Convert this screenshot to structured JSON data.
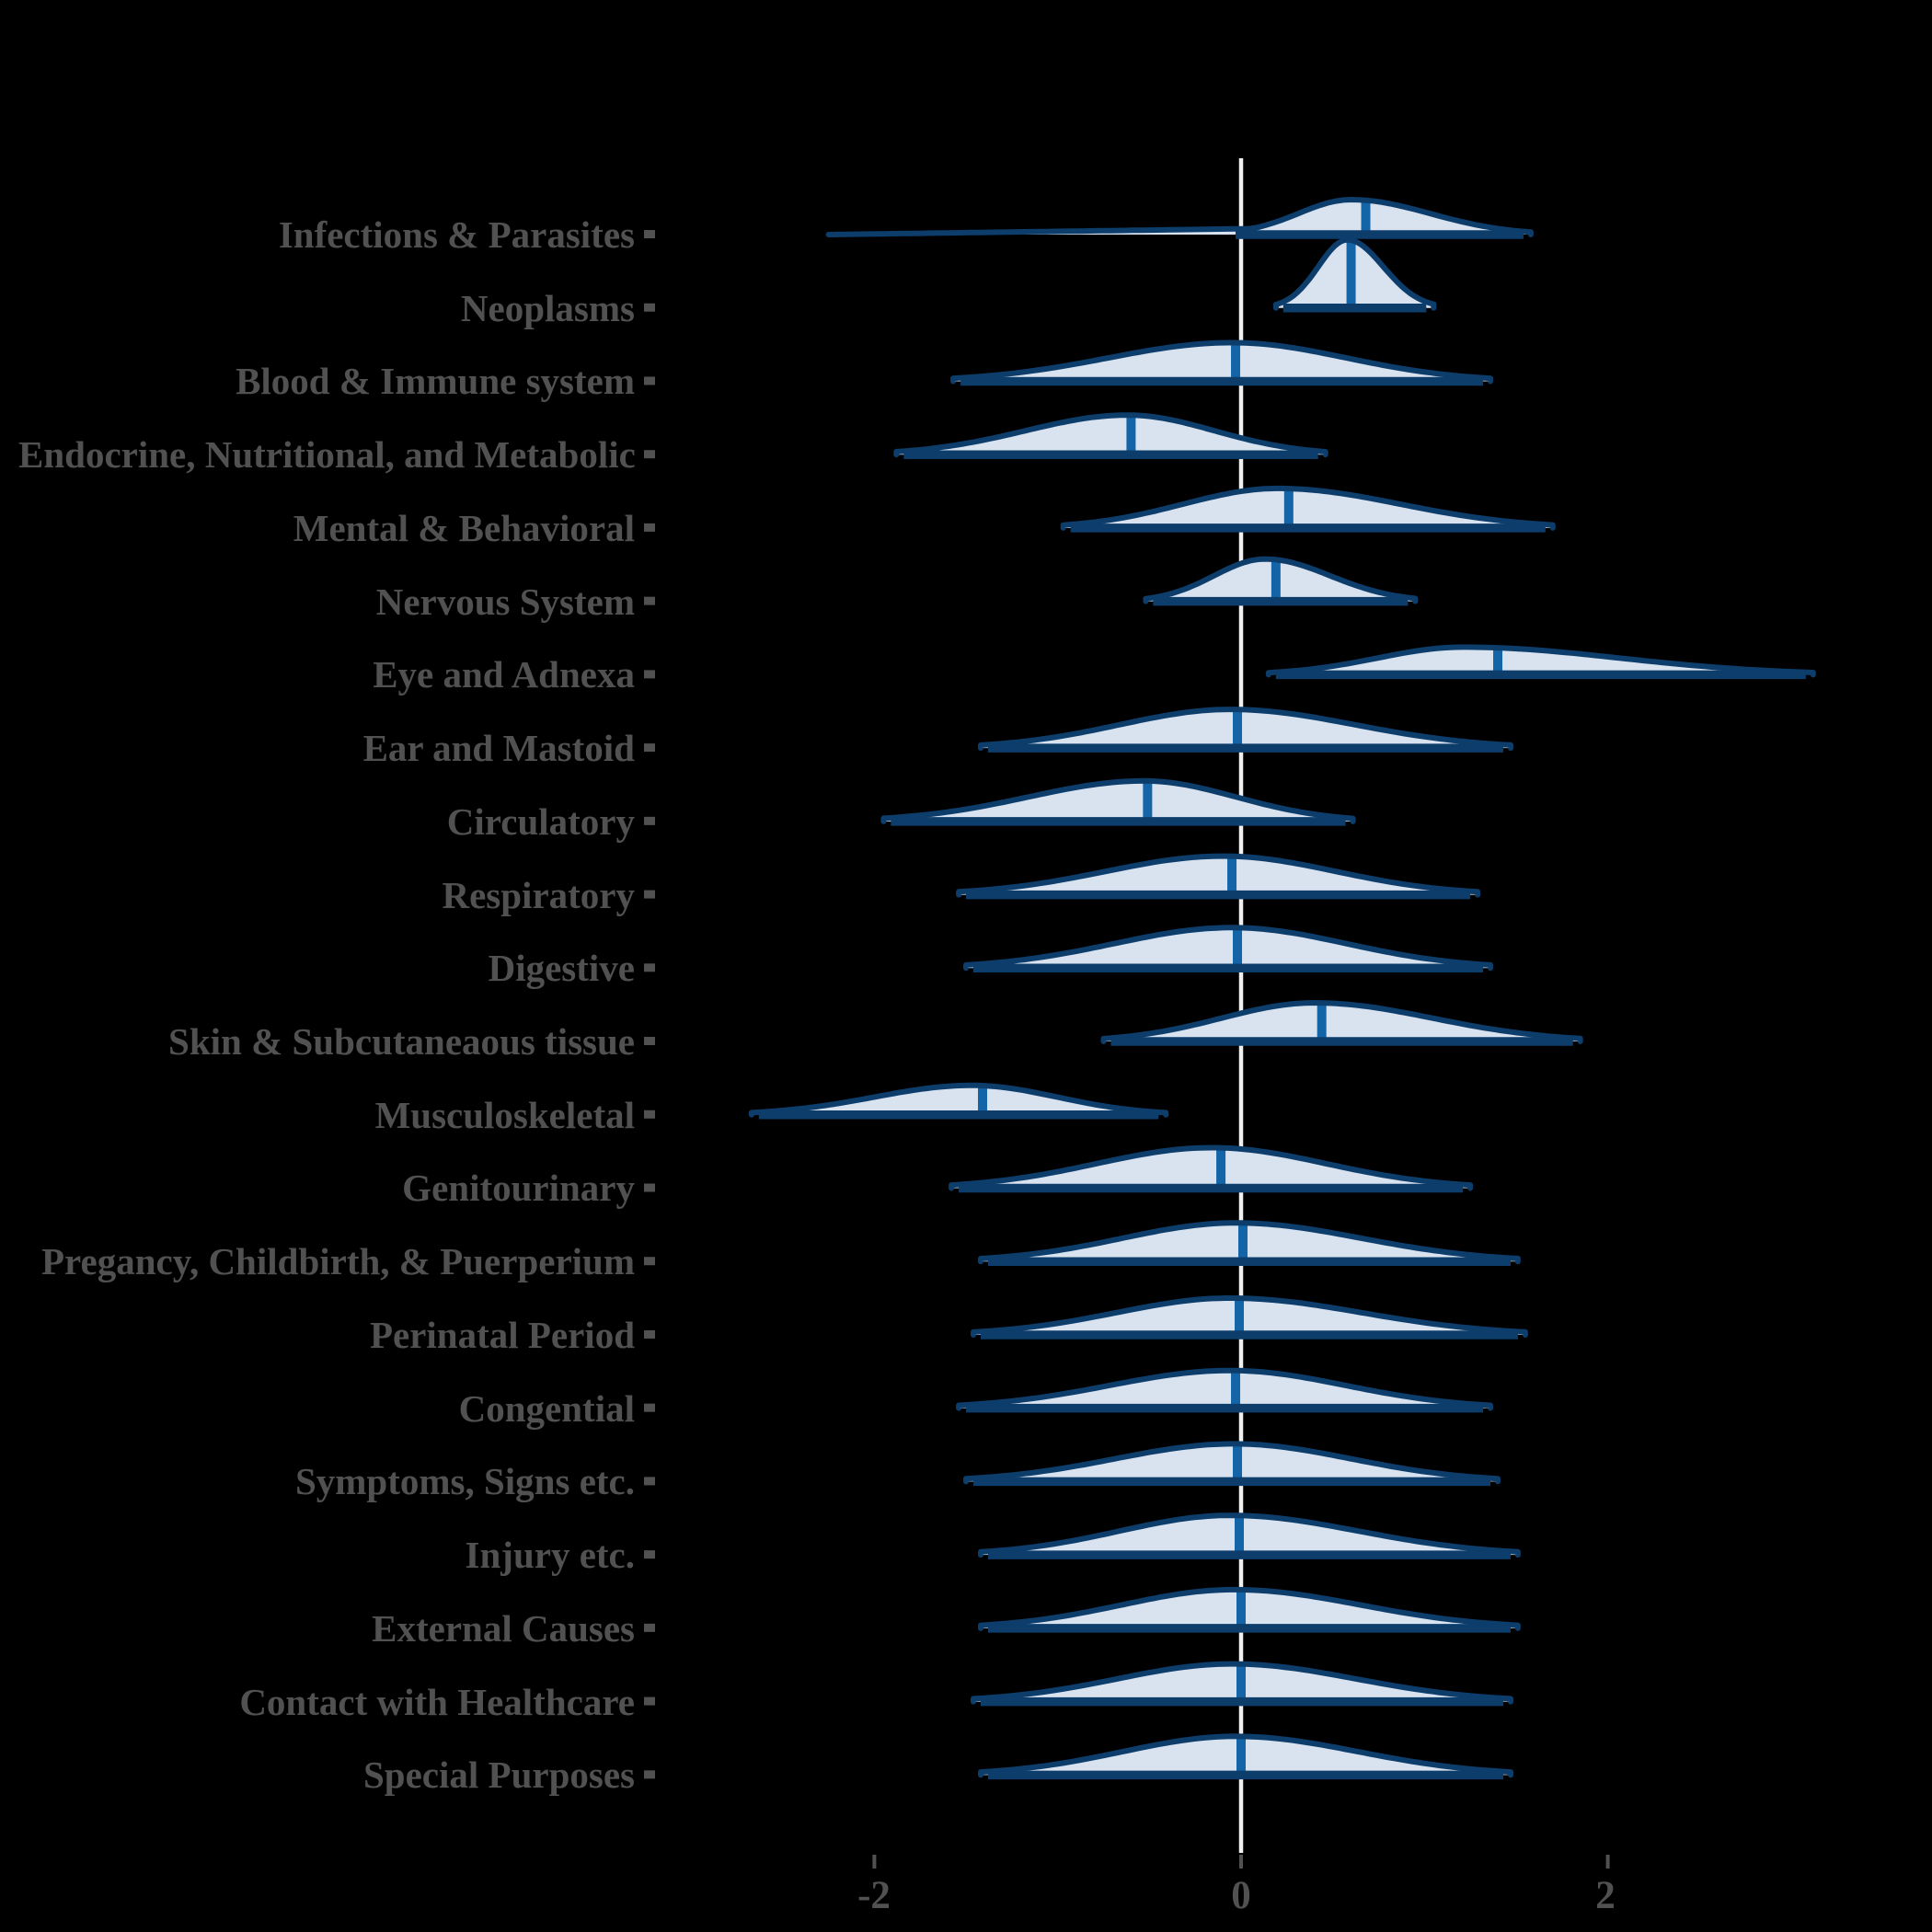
{
  "style": {
    "background": "#000000",
    "outline_color": "#0d3d6b",
    "fill_color": "#d9e2ef",
    "median_color": "#1465a8",
    "zero_line_color": "#f0f0f0",
    "tick_color": "#515151",
    "label_color": "#515151"
  },
  "chart_data": {
    "type": "area",
    "subtype": "ridgeline-half-violin-distributions",
    "xlabel": "",
    "ylabel": "",
    "title": "",
    "x_axis_range": [
      -3.5,
      3.8
    ],
    "grid": "off",
    "zero_reference_line": 0,
    "x_ticks": [
      {
        "value": -2,
        "label": "-2"
      },
      {
        "value": 0,
        "label": "0"
      },
      {
        "value": 2,
        "label": "2"
      }
    ],
    "rows": [
      {
        "category": "Infections & Parasites",
        "lo": -0.03,
        "hi": 1.54,
        "mode": 0.6,
        "median": 0.68,
        "peak": 38,
        "tail_lo": -2.25
      },
      {
        "category": "Neoplasms",
        "lo": 0.23,
        "hi": 1.01,
        "mode": 0.58,
        "median": 0.6,
        "peak": 74
      },
      {
        "category": "Blood & Immune system",
        "lo": -1.53,
        "hi": 1.32,
        "mode": -0.05,
        "median": -0.03,
        "peak": 42
      },
      {
        "category": "Endocrine, Nutritional, and Metabolic",
        "lo": -1.84,
        "hi": 0.42,
        "mode": -0.62,
        "median": -0.6,
        "peak": 43
      },
      {
        "category": "Mental & Behavioral",
        "lo": -0.93,
        "hi": 1.66,
        "mode": 0.2,
        "median": 0.26,
        "peak": 43
      },
      {
        "category": "Nervous System",
        "lo": -0.48,
        "hi": 0.91,
        "mode": 0.13,
        "median": 0.19,
        "peak": 46
      },
      {
        "category": "Eye and Adnexa",
        "lo": 0.19,
        "hi": 3.08,
        "mode": 1.21,
        "median": 1.4,
        "peak": 30
      },
      {
        "category": "Ear and Mastoid",
        "lo": -1.38,
        "hi": 1.43,
        "mode": -0.06,
        "median": -0.02,
        "peak": 42
      },
      {
        "category": "Circulatory",
        "lo": -1.91,
        "hi": 0.57,
        "mode": -0.53,
        "median": -0.51,
        "peak": 44
      },
      {
        "category": "Respiratory",
        "lo": -1.5,
        "hi": 1.25,
        "mode": -0.1,
        "median": -0.05,
        "peak": 42
      },
      {
        "category": "Digestive",
        "lo": -1.46,
        "hi": 1.32,
        "mode": -0.05,
        "median": -0.02,
        "peak": 44
      },
      {
        "category": "Skin & Subcutaneaous tissue",
        "lo": -0.71,
        "hi": 1.81,
        "mode": 0.4,
        "median": 0.44,
        "peak": 42
      },
      {
        "category": "Musculoskeletal",
        "lo": -2.63,
        "hi": -0.45,
        "mode": -1.47,
        "median": -1.41,
        "peak": 32
      },
      {
        "category": "Genitourinary",
        "lo": -1.54,
        "hi": 1.21,
        "mode": -0.16,
        "median": -0.11,
        "peak": 44
      },
      {
        "category": "Pregancy, Childbirth, & Puerperium",
        "lo": -1.38,
        "hi": 1.47,
        "mode": -0.03,
        "median": 0.01,
        "peak": 42
      },
      {
        "category": "Perinatal Period",
        "lo": -1.42,
        "hi": 1.51,
        "mode": -0.06,
        "median": -0.01,
        "peak": 40
      },
      {
        "category": "Congential",
        "lo": -1.5,
        "hi": 1.32,
        "mode": -0.06,
        "median": -0.03,
        "peak": 41
      },
      {
        "category": "Symptoms, Signs etc.",
        "lo": -1.46,
        "hi": 1.36,
        "mode": -0.04,
        "median": -0.02,
        "peak": 41
      },
      {
        "category": "Injury etc.",
        "lo": -1.38,
        "hi": 1.47,
        "mode": -0.06,
        "median": -0.01,
        "peak": 43
      },
      {
        "category": "External Causes",
        "lo": -1.38,
        "hi": 1.47,
        "mode": -0.04,
        "median": 0.0,
        "peak": 42
      },
      {
        "category": "Contact with Healthcare",
        "lo": -1.42,
        "hi": 1.43,
        "mode": -0.05,
        "median": 0.0,
        "peak": 41
      },
      {
        "category": "Special Purposes",
        "lo": -1.38,
        "hi": 1.43,
        "mode": -0.03,
        "median": 0.0,
        "peak": 42
      }
    ]
  }
}
